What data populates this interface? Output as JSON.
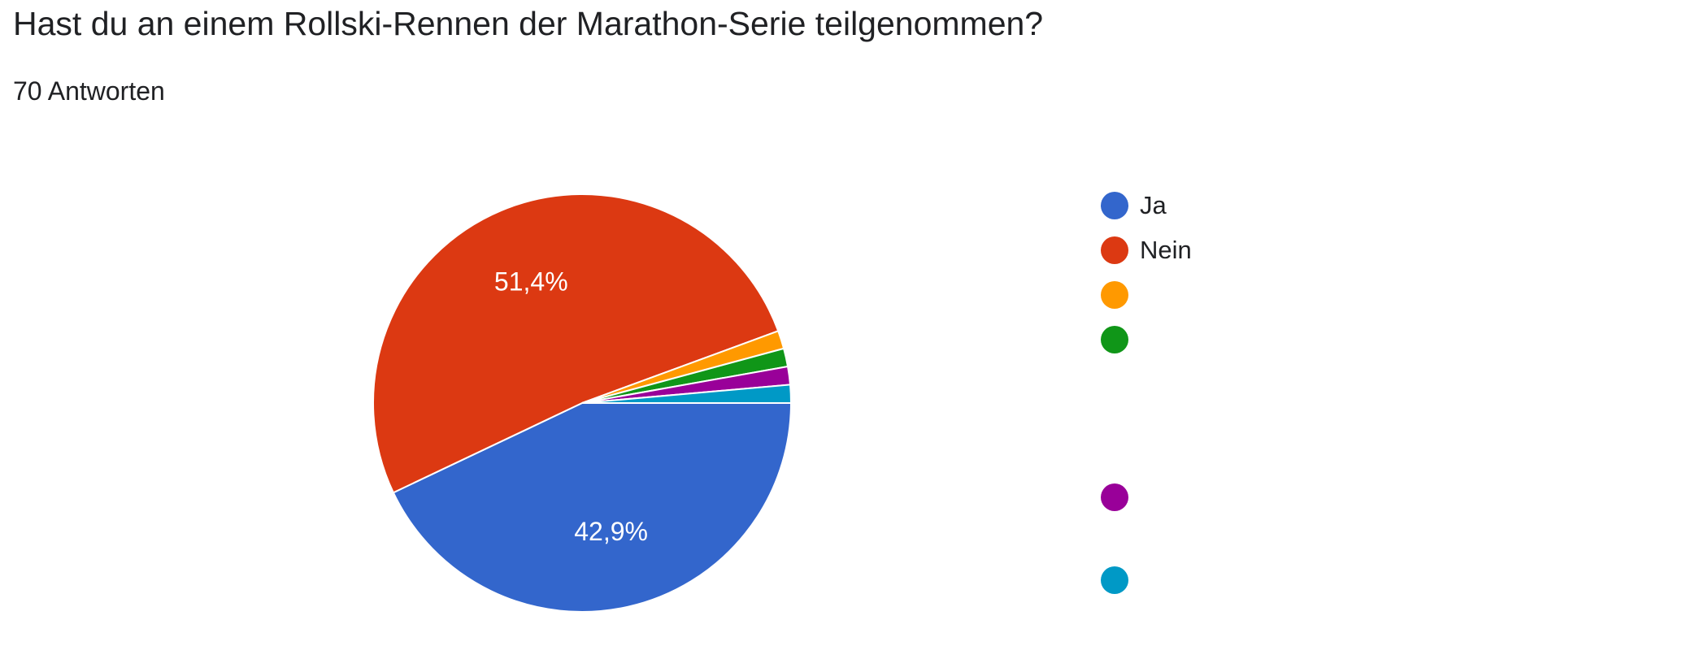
{
  "header": {
    "title": "Hast du an einem Rollski-Rennen der Marathon-Serie teilgenommen?",
    "response_count": "70 Antworten"
  },
  "chart_data": {
    "type": "pie",
    "title": "Hast du an einem Rollski-Rennen der Marathon-Serie teilgenommen?",
    "legend_placement": "right",
    "slices": [
      {
        "label": "Ja",
        "value": 42.9,
        "value_label": "42,9%",
        "color": "#3366cc"
      },
      {
        "label": "Nein",
        "value": 51.4,
        "value_label": "51,4%",
        "color": "#dc3912"
      },
      {
        "label": "",
        "value": 1.4,
        "value_label": "",
        "color": "#ff9900"
      },
      {
        "label": "",
        "value": 1.4,
        "value_label": "",
        "color": "#109618"
      },
      {
        "label": "",
        "value": 1.4,
        "value_label": "",
        "color": "#990099"
      },
      {
        "label": "",
        "value": 1.4,
        "value_label": "",
        "color": "#0099c6"
      }
    ]
  }
}
